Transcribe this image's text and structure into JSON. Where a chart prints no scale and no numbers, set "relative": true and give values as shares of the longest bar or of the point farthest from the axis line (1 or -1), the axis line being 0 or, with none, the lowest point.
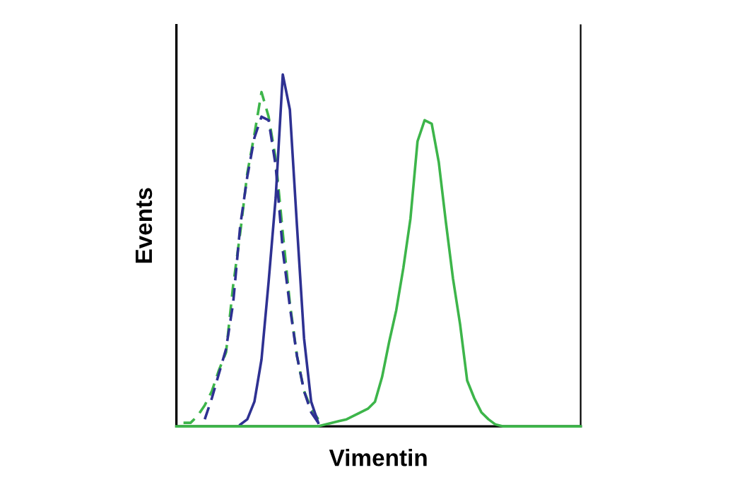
{
  "chart_data": {
    "type": "line",
    "relative": true,
    "xlabel": "Vimentin",
    "ylabel": "Events",
    "categories": [
      null,
      null,
      null,
      null,
      null,
      null,
      null,
      null,
      null,
      null,
      null,
      null,
      null,
      null,
      null,
      null,
      null,
      null,
      null,
      null,
      null,
      null,
      null,
      null,
      null,
      null,
      null,
      null,
      null,
      null,
      null,
      null,
      null,
      null,
      null,
      null,
      null,
      null,
      null,
      null,
      null,
      null,
      null,
      null,
      null,
      null,
      null,
      null,
      null,
      null,
      null,
      null,
      null,
      null,
      null,
      null,
      null,
      null
    ],
    "series": [
      {
        "color": "#3db54a",
        "line_style": "dashed",
        "values": [
          null,
          0.01,
          0.01,
          0.03,
          0.06,
          0.1,
          0.16,
          0.21,
          0.4,
          0.55,
          0.72,
          0.83,
          0.95,
          0.88,
          0.76,
          0.55,
          0.35,
          0.2,
          0.1,
          0.05,
          0.02,
          null,
          null,
          null,
          null,
          null,
          null,
          null,
          null,
          null,
          null,
          null,
          null,
          null,
          null,
          null,
          null,
          null,
          null,
          null,
          null,
          null,
          null,
          null,
          null,
          null,
          null,
          null,
          null,
          null,
          null,
          null,
          null,
          null,
          null,
          null,
          null,
          null
        ]
      },
      {
        "color": "#2e3192",
        "line_style": "dashed",
        "values": [
          null,
          null,
          null,
          null,
          0.02,
          0.08,
          0.15,
          0.22,
          0.35,
          0.57,
          0.71,
          0.82,
          0.88,
          0.87,
          0.74,
          0.5,
          0.34,
          0.2,
          0.1,
          0.04,
          0.01,
          null,
          null,
          null,
          null,
          null,
          null,
          null,
          null,
          null,
          null,
          null,
          null,
          null,
          null,
          null,
          null,
          null,
          null,
          null,
          null,
          null,
          null,
          null,
          null,
          null,
          null,
          null,
          null,
          null,
          null,
          null,
          null,
          null,
          null,
          null,
          null,
          null
        ]
      },
      {
        "color": "#2e3192",
        "line_style": "solid",
        "values": [
          null,
          null,
          null,
          null,
          null,
          null,
          null,
          null,
          null,
          0.005,
          0.02,
          0.07,
          0.19,
          0.41,
          0.65,
          1.0,
          0.9,
          0.57,
          0.25,
          0.07,
          0.01,
          null,
          null,
          null,
          null,
          null,
          null,
          null,
          null,
          null,
          null,
          null,
          null,
          null,
          null,
          null,
          null,
          null,
          null,
          null,
          null,
          null,
          null,
          null,
          null,
          null,
          null,
          null,
          null,
          null,
          null,
          null,
          null,
          null,
          null,
          null,
          null,
          null
        ]
      },
      {
        "color": "#3db54a",
        "line_style": "solid",
        "values": [
          0,
          0,
          0,
          0,
          0,
          0,
          0,
          0,
          0,
          0,
          0,
          0,
          0,
          0,
          0,
          0,
          0,
          0,
          0,
          0,
          0,
          0.005,
          0.01,
          0.015,
          0.02,
          0.03,
          0.04,
          0.05,
          0.07,
          0.14,
          0.24,
          0.33,
          0.45,
          0.59,
          0.81,
          0.87,
          0.86,
          0.75,
          0.58,
          0.42,
          0.29,
          0.13,
          0.08,
          0.04,
          0.02,
          0.005,
          0,
          0,
          0,
          0,
          0,
          0,
          0,
          0,
          0,
          0,
          0,
          0
        ]
      }
    ]
  }
}
